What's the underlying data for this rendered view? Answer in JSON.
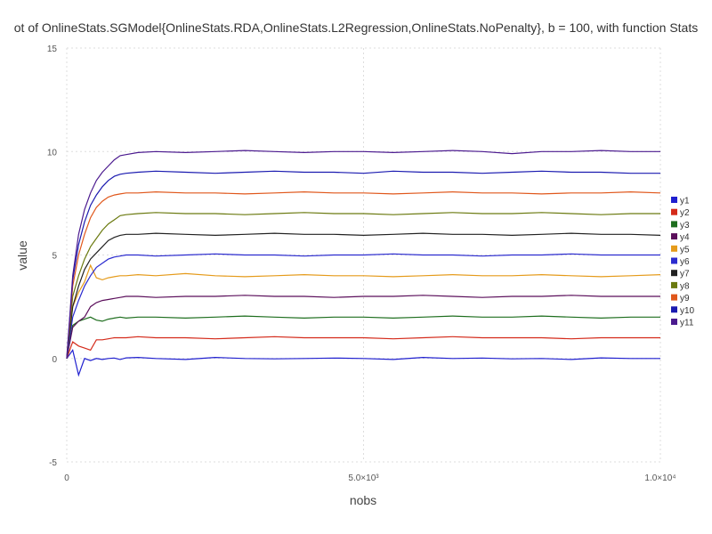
{
  "chart_data": {
    "type": "line",
    "title": "ot of OnlineStats.SGModel{OnlineStats.RDA,OnlineStats.L2Regression,OnlineStats.NoPenalty}, b = 100, with function Stats",
    "xlabel": "nobs",
    "ylabel": "value",
    "xlim": [
      0,
      10000
    ],
    "ylim": [
      -5,
      15
    ],
    "x_ticks": [
      {
        "value": 0,
        "label": "0"
      },
      {
        "value": 5000,
        "label": "5.0×10³"
      },
      {
        "value": 10000,
        "label": "1.0×10⁴"
      }
    ],
    "y_ticks": [
      {
        "value": -5,
        "label": "-5"
      },
      {
        "value": 0,
        "label": "0"
      },
      {
        "value": 5,
        "label": "5"
      },
      {
        "value": 10,
        "label": "10"
      },
      {
        "value": 15,
        "label": "15"
      }
    ],
    "grid": true,
    "legend_position": "right",
    "x": [
      0,
      100,
      200,
      300,
      400,
      500,
      600,
      700,
      800,
      900,
      1000,
      1200,
      1500,
      2000,
      2500,
      3000,
      3500,
      4000,
      4500,
      5000,
      5500,
      6000,
      6500,
      7000,
      7500,
      8000,
      8500,
      9000,
      9500,
      10000
    ],
    "series": [
      {
        "name": "y1",
        "color": "#1f1fcf",
        "values": [
          0.0,
          0.4,
          -0.8,
          0.0,
          -0.1,
          0.0,
          -0.05,
          0.0,
          0.02,
          -0.05,
          0.03,
          0.05,
          0.0,
          -0.05,
          0.05,
          0.0,
          -0.02,
          0.0,
          0.02,
          0.0,
          -0.05,
          0.05,
          0.0,
          0.02,
          -0.02,
          0.0,
          -0.05,
          0.03,
          0.0,
          0.0
        ]
      },
      {
        "name": "y2",
        "color": "#d42a1a",
        "values": [
          0.0,
          0.8,
          0.6,
          0.5,
          0.4,
          0.9,
          0.9,
          0.95,
          1.0,
          1.0,
          1.0,
          1.05,
          1.0,
          1.0,
          0.95,
          1.0,
          1.05,
          1.0,
          1.0,
          1.0,
          0.95,
          1.0,
          1.05,
          1.0,
          1.0,
          1.0,
          0.95,
          1.0,
          1.0,
          1.0
        ]
      },
      {
        "name": "y3",
        "color": "#1e6e1e",
        "values": [
          0.0,
          1.6,
          1.8,
          1.9,
          2.0,
          1.85,
          1.8,
          1.9,
          1.95,
          2.0,
          1.95,
          2.0,
          2.0,
          1.95,
          2.0,
          2.05,
          2.0,
          1.95,
          2.0,
          2.0,
          1.95,
          2.0,
          2.05,
          2.0,
          2.0,
          2.05,
          2.0,
          1.95,
          2.0,
          2.0
        ]
      },
      {
        "name": "y4",
        "color": "#5b0f5b",
        "values": [
          0.0,
          1.5,
          1.8,
          2.0,
          2.5,
          2.7,
          2.8,
          2.85,
          2.9,
          2.95,
          3.0,
          3.0,
          2.95,
          3.0,
          3.0,
          3.05,
          3.0,
          3.0,
          2.95,
          3.0,
          3.0,
          3.05,
          3.0,
          2.95,
          3.0,
          3.0,
          3.05,
          3.0,
          3.0,
          3.0
        ]
      },
      {
        "name": "y5",
        "color": "#e59b1b",
        "values": [
          0.0,
          2.5,
          3.2,
          3.7,
          4.5,
          3.9,
          3.8,
          3.9,
          3.95,
          4.0,
          4.0,
          4.05,
          4.0,
          4.1,
          4.0,
          3.95,
          4.0,
          4.05,
          4.0,
          4.0,
          3.95,
          4.0,
          4.05,
          4.0,
          4.0,
          4.05,
          4.0,
          3.95,
          4.0,
          4.05
        ]
      },
      {
        "name": "y6",
        "color": "#2b2bcf",
        "values": [
          0.0,
          2.0,
          2.8,
          3.5,
          4.0,
          4.4,
          4.6,
          4.8,
          4.9,
          4.95,
          5.0,
          5.0,
          4.95,
          5.0,
          5.05,
          5.0,
          5.0,
          4.95,
          5.0,
          5.0,
          5.05,
          5.0,
          5.0,
          4.95,
          5.0,
          5.0,
          5.05,
          5.0,
          5.0,
          5.0
        ]
      },
      {
        "name": "y7",
        "color": "#222222",
        "values": [
          0.0,
          2.5,
          3.5,
          4.3,
          4.8,
          5.1,
          5.4,
          5.7,
          5.85,
          5.95,
          6.0,
          6.0,
          6.05,
          6.0,
          5.95,
          6.0,
          6.05,
          6.0,
          6.0,
          5.95,
          6.0,
          6.05,
          6.0,
          6.0,
          5.95,
          6.0,
          6.05,
          6.0,
          6.0,
          5.95
        ]
      },
      {
        "name": "y8",
        "color": "#6b7a10",
        "values": [
          0.0,
          3.0,
          4.0,
          4.8,
          5.4,
          5.8,
          6.2,
          6.5,
          6.7,
          6.9,
          6.95,
          7.0,
          7.05,
          7.0,
          7.0,
          6.95,
          7.0,
          7.05,
          7.0,
          7.0,
          6.95,
          7.0,
          7.05,
          7.0,
          7.0,
          7.05,
          7.0,
          6.95,
          7.0,
          7.0
        ]
      },
      {
        "name": "y9",
        "color": "#e0571b",
        "values": [
          0.0,
          3.5,
          5.0,
          6.0,
          6.8,
          7.3,
          7.6,
          7.8,
          7.9,
          7.95,
          8.0,
          8.0,
          8.05,
          8.0,
          8.0,
          7.95,
          8.0,
          8.05,
          8.0,
          8.0,
          7.95,
          8.0,
          8.05,
          8.0,
          8.0,
          7.95,
          8.0,
          8.0,
          8.05,
          8.0
        ]
      },
      {
        "name": "y10",
        "color": "#1a1ab0",
        "values": [
          0.0,
          3.8,
          5.5,
          6.6,
          7.4,
          7.9,
          8.3,
          8.6,
          8.8,
          8.9,
          8.95,
          9.0,
          9.05,
          9.0,
          8.95,
          9.0,
          9.05,
          9.0,
          9.0,
          8.95,
          9.05,
          9.0,
          9.0,
          8.95,
          9.0,
          9.05,
          9.0,
          9.0,
          8.95,
          8.95
        ]
      },
      {
        "name": "y11",
        "color": "#4b1a8f",
        "values": [
          0.0,
          4.0,
          6.0,
          7.2,
          8.0,
          8.6,
          9.0,
          9.3,
          9.6,
          9.8,
          9.85,
          9.95,
          10.0,
          9.95,
          10.0,
          10.05,
          10.0,
          9.95,
          10.0,
          10.0,
          9.95,
          10.0,
          10.05,
          10.0,
          9.9,
          10.0,
          10.0,
          10.05,
          10.0,
          10.0
        ]
      }
    ]
  }
}
